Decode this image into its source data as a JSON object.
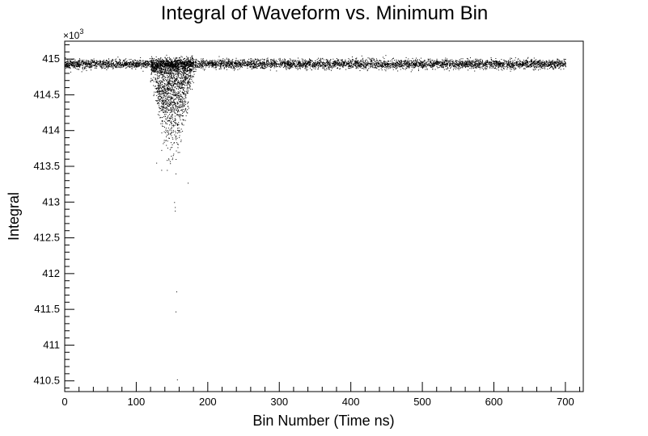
{
  "chart_data": {
    "type": "scatter",
    "title": "Integral of Waveform vs. Minimum Bin",
    "xlabel": "Bin Number (Time ns)",
    "ylabel": "Integral",
    "y_multiplier": {
      "base": "×10",
      "exponent": "3"
    },
    "xlim": [
      0,
      725
    ],
    "ylim": [
      410.35,
      415.25
    ],
    "x_ticks": [
      0,
      100,
      200,
      300,
      400,
      500,
      600,
      700
    ],
    "x_tick_labels": [
      "0",
      "100",
      "200",
      "300",
      "400",
      "500",
      "600",
      "700"
    ],
    "y_ticks": [
      410.5,
      411,
      411.5,
      412,
      412.5,
      413,
      413.5,
      414,
      414.5,
      415
    ],
    "y_tick_labels": [
      "410.5",
      "411",
      "411.5",
      "412",
      "412.5",
      "413",
      "413.5",
      "414",
      "414.5",
      "415"
    ],
    "grid": false,
    "marker_color": "#000000",
    "series": [
      {
        "name": "",
        "description_band": {
          "x_range": [
            0,
            700
          ],
          "y_range": [
            414.87,
            415.0
          ]
        },
        "description_plume": {
          "x_range": [
            118,
            185
          ],
          "y_range": [
            413.3,
            414.9
          ]
        },
        "points": [
          [
            153,
            413.0
          ],
          [
            154,
            412.93
          ],
          [
            154,
            412.88
          ],
          [
            156,
            411.75
          ],
          [
            155,
            411.47
          ],
          [
            157,
            410.52
          ],
          [
            155,
            413.4
          ],
          [
            150,
            413.6
          ],
          [
            172,
            413.27
          ],
          [
            160,
            413.7
          ],
          [
            135,
            413.45
          ],
          [
            128,
            413.55
          ],
          [
            145,
            413.9
          ],
          [
            149,
            414.05
          ],
          [
            162,
            413.85
          ]
        ]
      }
    ]
  }
}
